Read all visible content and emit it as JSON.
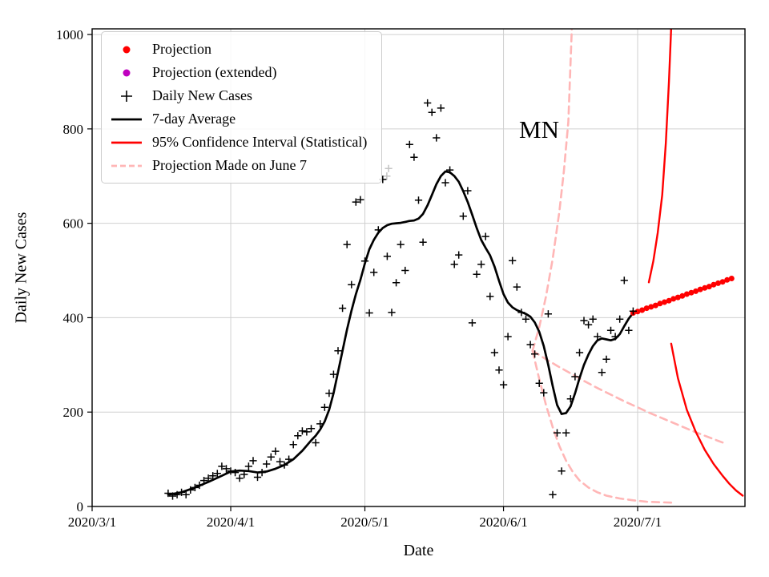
{
  "chart_data": {
    "type": "line+scatter",
    "annotation": "MN",
    "xlabel": "Date",
    "ylabel": "Daily New Cases",
    "x_unit": "days since 2020/3/1",
    "xlim": [
      0,
      146
    ],
    "ylim": [
      0,
      1012
    ],
    "grid": true,
    "legend_position": "upper left",
    "yticks": [
      0,
      200,
      400,
      600,
      800,
      1000
    ],
    "xticks": [
      {
        "day": 0,
        "label": "2020/3/1"
      },
      {
        "day": 31,
        "label": "2020/4/1"
      },
      {
        "day": 61,
        "label": "2020/5/1"
      },
      {
        "day": 92,
        "label": "2020/6/1"
      },
      {
        "day": 122,
        "label": "2020/7/1"
      }
    ],
    "colors": {
      "cases": "#000000",
      "average": "#000000",
      "projection": "#ff0000",
      "extended": "#bf00bf",
      "ci": "#ff0000",
      "june7": "#ffb6b6",
      "ghost": "#c4c4c4",
      "grid": "#d0d0d0"
    },
    "legend": [
      {
        "label": "Projection",
        "swatch": "dot",
        "color": "#ff0000"
      },
      {
        "label": "Projection (extended)",
        "swatch": "dot",
        "color": "#bf00bf"
      },
      {
        "label": "Daily New Cases",
        "swatch": "plus",
        "color": "#000000"
      },
      {
        "label": "7-day Average",
        "swatch": "line",
        "color": "#000000"
      },
      {
        "label": "95% Confidence Interval (Statistical)",
        "swatch": "line",
        "color": "#ff0000"
      },
      {
        "label": "Projection Made on June 7",
        "swatch": "dashed-line",
        "color": "#ffb6b6"
      }
    ],
    "series": {
      "daily_new_cases": {
        "marker": "plus",
        "points": [
          [
            17,
            28
          ],
          [
            18,
            22
          ],
          [
            19,
            25
          ],
          [
            20,
            30
          ],
          [
            21,
            25
          ],
          [
            22,
            35
          ],
          [
            23,
            40
          ],
          [
            24,
            45
          ],
          [
            25,
            55
          ],
          [
            26,
            60
          ],
          [
            27,
            65
          ],
          [
            28,
            70
          ],
          [
            29,
            85
          ],
          [
            30,
            80
          ],
          [
            31,
            75
          ],
          [
            32,
            72
          ],
          [
            33,
            60
          ],
          [
            34,
            68
          ],
          [
            35,
            85
          ],
          [
            36,
            97
          ],
          [
            37,
            62
          ],
          [
            38,
            72
          ],
          [
            39,
            90
          ],
          [
            40,
            105
          ],
          [
            41,
            117
          ],
          [
            42,
            95
          ],
          [
            43,
            88
          ],
          [
            44,
            100
          ],
          [
            45,
            131
          ],
          [
            46,
            150
          ],
          [
            47,
            160
          ],
          [
            48,
            158
          ],
          [
            49,
            165
          ],
          [
            50,
            135
          ],
          [
            51,
            175
          ],
          [
            52,
            210
          ],
          [
            53,
            240
          ],
          [
            54,
            280
          ],
          [
            55,
            330
          ],
          [
            56,
            420
          ],
          [
            57,
            555
          ],
          [
            58,
            470
          ],
          [
            59,
            645
          ],
          [
            60,
            650
          ],
          [
            61,
            520
          ],
          [
            62,
            410
          ],
          [
            63,
            496
          ],
          [
            64,
            586
          ],
          [
            65,
            693
          ],
          [
            66,
            530
          ],
          [
            67,
            411
          ],
          [
            68,
            474
          ],
          [
            69,
            555
          ],
          [
            70,
            500
          ],
          [
            71,
            767
          ],
          [
            72,
            740
          ],
          [
            73,
            649
          ],
          [
            74,
            560
          ],
          [
            75,
            855
          ],
          [
            76,
            835
          ],
          [
            77,
            781
          ],
          [
            78,
            844
          ],
          [
            79,
            686
          ],
          [
            80,
            713
          ],
          [
            81,
            513
          ],
          [
            82,
            533
          ],
          [
            83,
            615
          ],
          [
            84,
            669
          ],
          [
            85,
            389
          ],
          [
            86,
            492
          ],
          [
            87,
            513
          ],
          [
            88,
            572
          ],
          [
            89,
            445
          ],
          [
            90,
            326
          ],
          [
            91,
            289
          ],
          [
            92,
            258
          ],
          [
            93,
            360
          ],
          [
            94,
            521
          ],
          [
            95,
            465
          ],
          [
            96,
            411
          ],
          [
            97,
            397
          ],
          [
            98,
            343
          ],
          [
            99,
            323
          ],
          [
            100,
            261
          ],
          [
            101,
            241
          ],
          [
            102,
            408
          ],
          [
            103,
            25
          ],
          [
            104,
            156
          ],
          [
            105,
            75
          ],
          [
            106,
            156
          ],
          [
            107,
            228
          ],
          [
            108,
            275
          ],
          [
            109,
            326
          ],
          [
            110,
            394
          ],
          [
            111,
            385
          ],
          [
            112,
            397
          ],
          [
            113,
            360
          ],
          [
            114,
            284
          ],
          [
            115,
            312
          ],
          [
            116,
            373
          ],
          [
            117,
            360
          ],
          [
            118,
            397
          ],
          [
            119,
            479
          ],
          [
            120,
            373
          ],
          [
            121,
            414
          ]
        ]
      },
      "ghost_markers": {
        "marker": "plus",
        "points": [
          [
            65.9,
            700
          ],
          [
            66.3,
            716
          ]
        ]
      },
      "seven_day_average": {
        "style": "solid",
        "points": [
          [
            17,
            25
          ],
          [
            20,
            30
          ],
          [
            23,
            40
          ],
          [
            26,
            52
          ],
          [
            29,
            65
          ],
          [
            31,
            74
          ],
          [
            33,
            76
          ],
          [
            35,
            75
          ],
          [
            37,
            72
          ],
          [
            39,
            74
          ],
          [
            41,
            80
          ],
          [
            43,
            88
          ],
          [
            45,
            100
          ],
          [
            47,
            118
          ],
          [
            49,
            140
          ],
          [
            50,
            150
          ],
          [
            51,
            163
          ],
          [
            52,
            180
          ],
          [
            53,
            205
          ],
          [
            54,
            240
          ],
          [
            55,
            285
          ],
          [
            56,
            330
          ],
          [
            57,
            375
          ],
          [
            58,
            415
          ],
          [
            59,
            450
          ],
          [
            60,
            480
          ],
          [
            61,
            515
          ],
          [
            62,
            545
          ],
          [
            63,
            565
          ],
          [
            64,
            580
          ],
          [
            65,
            590
          ],
          [
            66,
            596
          ],
          [
            67,
            599
          ],
          [
            68,
            600
          ],
          [
            69,
            601
          ],
          [
            70,
            603
          ],
          [
            71,
            605
          ],
          [
            72,
            606
          ],
          [
            73,
            610
          ],
          [
            74,
            620
          ],
          [
            75,
            638
          ],
          [
            76,
            660
          ],
          [
            77,
            683
          ],
          [
            78,
            700
          ],
          [
            79,
            710
          ],
          [
            80,
            708
          ],
          [
            81,
            700
          ],
          [
            82,
            688
          ],
          [
            83,
            668
          ],
          [
            84,
            645
          ],
          [
            85,
            618
          ],
          [
            86,
            590
          ],
          [
            87,
            565
          ],
          [
            88,
            548
          ],
          [
            89,
            532
          ],
          [
            90,
            508
          ],
          [
            91,
            478
          ],
          [
            92,
            450
          ],
          [
            93,
            432
          ],
          [
            94,
            422
          ],
          [
            95,
            416
          ],
          [
            96,
            412
          ],
          [
            97,
            408
          ],
          [
            98,
            402
          ],
          [
            99,
            390
          ],
          [
            100,
            370
          ],
          [
            101,
            340
          ],
          [
            102,
            300
          ],
          [
            103,
            255
          ],
          [
            104,
            215
          ],
          [
            105,
            196
          ],
          [
            106,
            198
          ],
          [
            107,
            212
          ],
          [
            108,
            240
          ],
          [
            109,
            272
          ],
          [
            110,
            300
          ],
          [
            111,
            322
          ],
          [
            112,
            340
          ],
          [
            113,
            352
          ],
          [
            114,
            356
          ],
          [
            115,
            354
          ],
          [
            116,
            352
          ],
          [
            117,
            355
          ],
          [
            118,
            365
          ],
          [
            119,
            382
          ],
          [
            120,
            398
          ],
          [
            121,
            410
          ]
        ]
      },
      "projection": {
        "marker": "dot",
        "points": [
          [
            121,
            410
          ],
          [
            122,
            413
          ],
          [
            123,
            416
          ],
          [
            124,
            420
          ],
          [
            125,
            423
          ],
          [
            126,
            426
          ],
          [
            127,
            430
          ],
          [
            128,
            433
          ],
          [
            129,
            436
          ],
          [
            130,
            440
          ],
          [
            131,
            443
          ],
          [
            132,
            446
          ],
          [
            133,
            450
          ],
          [
            134,
            453
          ],
          [
            135,
            456
          ],
          [
            136,
            460
          ],
          [
            137,
            463
          ],
          [
            138,
            466
          ],
          [
            139,
            470
          ],
          [
            140,
            473
          ],
          [
            141,
            476
          ],
          [
            142,
            480
          ],
          [
            143,
            483
          ]
        ]
      },
      "ci_upper": {
        "style": "solid",
        "points": [
          [
            124.5,
            475
          ],
          [
            125.5,
            520
          ],
          [
            126.5,
            580
          ],
          [
            127.5,
            660
          ],
          [
            128.3,
            770
          ],
          [
            129,
            900
          ],
          [
            129.7,
            1060
          ]
        ]
      },
      "ci_lower": {
        "style": "solid",
        "points": [
          [
            129.5,
            345
          ],
          [
            131,
            272
          ],
          [
            133,
            205
          ],
          [
            135,
            158
          ],
          [
            137,
            120
          ],
          [
            139,
            90
          ],
          [
            141,
            65
          ],
          [
            142.5,
            48
          ],
          [
            144,
            34
          ],
          [
            145.5,
            23
          ]
        ]
      },
      "june7_upper_ci": {
        "style": "dashed",
        "points": [
          [
            98.5,
            330
          ],
          [
            100,
            380
          ],
          [
            101.5,
            445
          ],
          [
            103,
            525
          ],
          [
            104.5,
            625
          ],
          [
            105.5,
            710
          ],
          [
            106.5,
            815
          ],
          [
            107.5,
            1070
          ]
        ]
      },
      "june7_projection": {
        "style": "dashed",
        "points": [
          [
            98.5,
            330
          ],
          [
            101,
            315
          ],
          [
            104,
            298
          ],
          [
            107,
            282
          ],
          [
            110,
            266
          ],
          [
            113,
            251
          ],
          [
            116,
            237
          ],
          [
            119,
            223
          ],
          [
            122,
            210
          ],
          [
            125,
            197
          ],
          [
            128,
            185
          ],
          [
            131,
            173
          ],
          [
            134,
            161
          ],
          [
            137,
            150
          ],
          [
            140,
            139
          ],
          [
            142,
            132
          ]
        ]
      },
      "june7_lower_ci": {
        "style": "dashed",
        "points": [
          [
            98.5,
            330
          ],
          [
            100,
            270
          ],
          [
            101.5,
            215
          ],
          [
            103,
            168
          ],
          [
            104.5,
            128
          ],
          [
            106,
            97
          ],
          [
            107.5,
            73
          ],
          [
            109,
            55
          ],
          [
            111,
            40
          ],
          [
            113,
            30
          ],
          [
            115,
            23
          ],
          [
            118,
            17
          ],
          [
            121,
            13
          ],
          [
            124,
            10
          ],
          [
            127,
            9
          ],
          [
            130,
            8
          ]
        ]
      }
    }
  }
}
